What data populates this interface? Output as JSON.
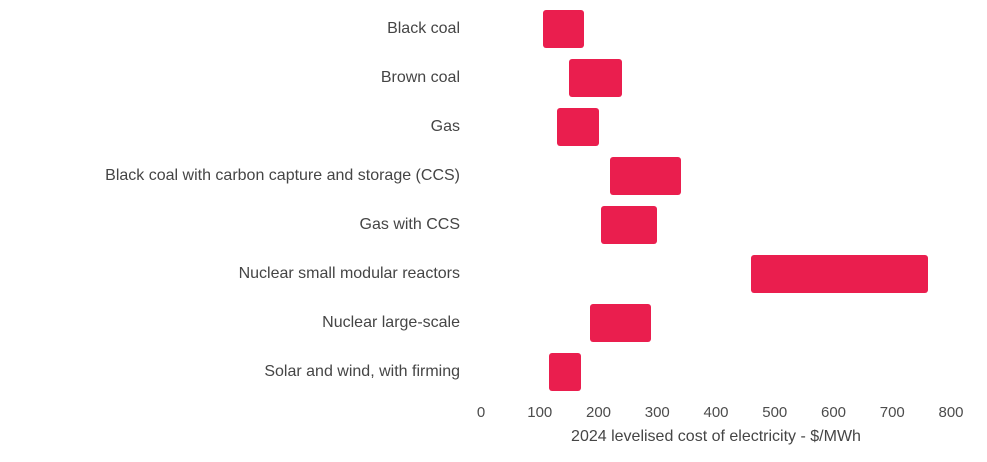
{
  "chart_data": {
    "type": "bar",
    "orientation": "horizontal",
    "bar_style": "floating-range",
    "title": "",
    "xlabel": "2024 levelised cost of electricity - $/MWh",
    "ylabel": "",
    "xlim": [
      0,
      800
    ],
    "x_ticks": [
      0,
      100,
      200,
      300,
      400,
      500,
      600,
      700,
      800
    ],
    "grid": false,
    "legend": "none",
    "bar_color": "#ea1e4e",
    "categories": [
      "Black coal",
      "Brown coal",
      "Gas",
      "Black coal with carbon capture and storage (CCS)",
      "Gas with CCS",
      "Nuclear small modular reactors",
      "Nuclear large-scale",
      "Solar and wind, with firming"
    ],
    "ranges": [
      {
        "category": "Black coal",
        "low": 105,
        "high": 175
      },
      {
        "category": "Brown coal",
        "low": 150,
        "high": 240
      },
      {
        "category": "Gas",
        "low": 130,
        "high": 200
      },
      {
        "category": "Black coal with carbon capture and storage (CCS)",
        "low": 220,
        "high": 340
      },
      {
        "category": "Gas with CCS",
        "low": 205,
        "high": 300
      },
      {
        "category": "Nuclear small modular reactors",
        "low": 460,
        "high": 760
      },
      {
        "category": "Nuclear large-scale",
        "low": 185,
        "high": 290
      },
      {
        "category": "Solar and wind, with firming",
        "low": 115,
        "high": 170
      }
    ]
  },
  "colors": {
    "background": "#ffffff",
    "bar": "#ea1e4e",
    "text": "#454545"
  }
}
